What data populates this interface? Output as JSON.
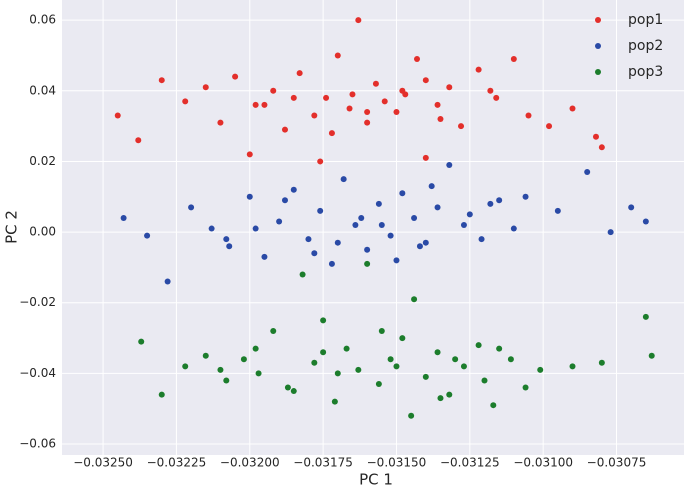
{
  "chart_data": {
    "type": "scatter",
    "x_label": "PC 1",
    "y_label": "PC 2",
    "xlim": [
      -0.03264,
      -0.03052
    ],
    "ylim": [
      -0.0631,
      0.0657
    ],
    "xticks": [
      {
        "value": -0.0325,
        "label": "−0.03250"
      },
      {
        "value": -0.03225,
        "label": "−0.03225"
      },
      {
        "value": -0.032,
        "label": "−0.03200"
      },
      {
        "value": -0.03175,
        "label": "−0.03175"
      },
      {
        "value": -0.0315,
        "label": "−0.03150"
      },
      {
        "value": -0.03125,
        "label": "−0.03125"
      },
      {
        "value": -0.031,
        "label": "−0.03100"
      },
      {
        "value": -0.03075,
        "label": "−0.03075"
      }
    ],
    "yticks": [
      {
        "value": -0.06,
        "label": "−0.06"
      },
      {
        "value": -0.04,
        "label": "−0.04"
      },
      {
        "value": -0.02,
        "label": "−0.02"
      },
      {
        "value": 0,
        "label": "0.00"
      },
      {
        "value": 0.02,
        "label": "0.02"
      },
      {
        "value": 0.04,
        "label": "0.04"
      },
      {
        "value": 0.06,
        "label": "0.06"
      }
    ],
    "grid": true,
    "legend": "upper right",
    "series": [
      {
        "name": "pop1",
        "color": "#e32f2b",
        "x": [
          -0.03245,
          -0.03238,
          -0.0323,
          -0.03222,
          -0.03215,
          -0.0321,
          -0.03205,
          -0.03198,
          -0.03192,
          -0.03188,
          -0.03183,
          -0.03178,
          -0.03174,
          -0.0317,
          -0.03166,
          -0.03163,
          -0.0316,
          -0.03157,
          -0.03154,
          -0.0315,
          -0.03147,
          -0.03143,
          -0.0314,
          -0.03136,
          -0.03132,
          -0.03128,
          -0.03122,
          -0.03116,
          -0.0311,
          -0.03105,
          -0.03098,
          -0.0309,
          -0.03082,
          -0.0308,
          -0.032,
          -0.03185,
          -0.03172,
          -0.0316,
          -0.03148,
          -0.03135,
          -0.03195,
          -0.03165,
          -0.0314,
          -0.03118,
          -0.03176
        ],
        "values": [
          0.033,
          0.026,
          0.043,
          0.037,
          0.041,
          0.031,
          0.044,
          0.036,
          0.04,
          0.029,
          0.045,
          0.033,
          0.038,
          0.05,
          0.035,
          0.06,
          0.031,
          0.042,
          0.037,
          0.034,
          0.039,
          0.049,
          0.021,
          0.036,
          0.041,
          0.03,
          0.046,
          0.038,
          0.049,
          0.033,
          0.03,
          0.035,
          0.027,
          0.024,
          0.022,
          0.038,
          0.028,
          0.034,
          0.04,
          0.032,
          0.036,
          0.039,
          0.043,
          0.04,
          0.02
        ]
      },
      {
        "name": "pop2",
        "color": "#2a4aa6",
        "x": [
          -0.03243,
          -0.03235,
          -0.03228,
          -0.0322,
          -0.03213,
          -0.03207,
          -0.032,
          -0.03195,
          -0.0319,
          -0.03185,
          -0.0318,
          -0.03176,
          -0.03172,
          -0.03168,
          -0.03164,
          -0.0316,
          -0.03156,
          -0.03152,
          -0.03148,
          -0.03144,
          -0.0314,
          -0.03136,
          -0.03132,
          -0.03127,
          -0.03121,
          -0.03115,
          -0.0311,
          -0.03106,
          -0.03095,
          -0.03085,
          -0.03077,
          -0.0307,
          -0.03065,
          -0.03198,
          -0.03178,
          -0.03162,
          -0.0315,
          -0.03138,
          -0.03125,
          -0.03188,
          -0.0317,
          -0.03155,
          -0.03142,
          -0.03118,
          -0.03208
        ],
        "values": [
          0.004,
          -0.001,
          -0.014,
          0.007,
          0.001,
          -0.004,
          0.01,
          -0.007,
          0.003,
          0.012,
          -0.002,
          0.006,
          -0.009,
          0.015,
          0.002,
          -0.005,
          0.008,
          -0.001,
          0.011,
          0.004,
          -0.003,
          0.007,
          0.019,
          0.002,
          -0.002,
          0.009,
          0.001,
          0.01,
          0.006,
          0.017,
          0,
          0.007,
          0.003,
          0.001,
          -0.006,
          0.004,
          -0.008,
          0.013,
          0.005,
          0.009,
          -0.003,
          0.002,
          -0.004,
          0.008,
          -0.002
        ]
      },
      {
        "name": "pop3",
        "color": "#1c7d2c",
        "x": [
          -0.03237,
          -0.0323,
          -0.03222,
          -0.03215,
          -0.03208,
          -0.03202,
          -0.03197,
          -0.03192,
          -0.03187,
          -0.03182,
          -0.03178,
          -0.03175,
          -0.03171,
          -0.03167,
          -0.03163,
          -0.0316,
          -0.03156,
          -0.03152,
          -0.03148,
          -0.03144,
          -0.0314,
          -0.03136,
          -0.03132,
          -0.03127,
          -0.03122,
          -0.03117,
          -0.03111,
          -0.03106,
          -0.03101,
          -0.0309,
          -0.0308,
          -0.03065,
          -0.03063,
          -0.03198,
          -0.03185,
          -0.0317,
          -0.03155,
          -0.03145,
          -0.0313,
          -0.0312,
          -0.0321,
          -0.03175,
          -0.0315,
          -0.03135,
          -0.03115
        ],
        "values": [
          -0.031,
          -0.046,
          -0.038,
          -0.035,
          -0.042,
          -0.036,
          -0.04,
          -0.028,
          -0.044,
          -0.012,
          -0.037,
          -0.025,
          -0.048,
          -0.033,
          -0.039,
          -0.009,
          -0.043,
          -0.036,
          -0.03,
          -0.019,
          -0.041,
          -0.034,
          -0.046,
          -0.038,
          -0.032,
          -0.049,
          -0.036,
          -0.044,
          -0.039,
          -0.038,
          -0.037,
          -0.024,
          -0.035,
          -0.033,
          -0.045,
          -0.04,
          -0.028,
          -0.052,
          -0.036,
          -0.042,
          -0.039,
          -0.034,
          -0.038,
          -0.047,
          -0.033
        ]
      }
    ]
  }
}
